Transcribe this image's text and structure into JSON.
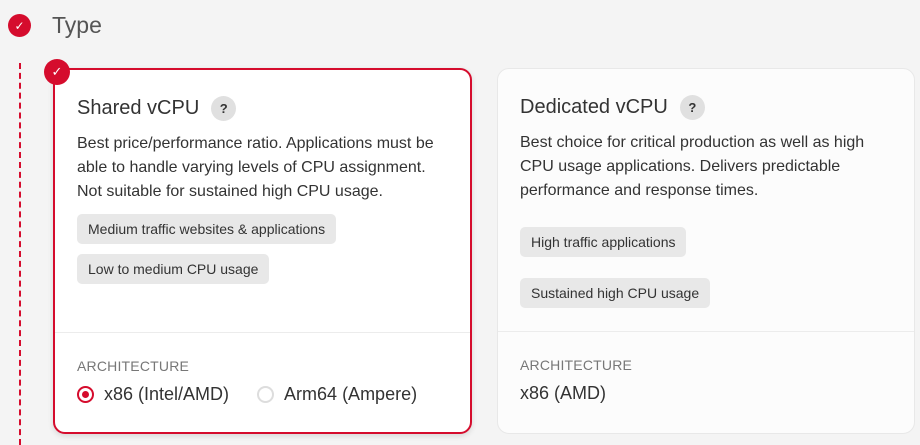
{
  "step": {
    "title": "Type",
    "status": "complete",
    "icon": "check-icon"
  },
  "accent_color": "#d50c2d",
  "cards": [
    {
      "title": "Shared vCPU",
      "help": "?",
      "selected": true,
      "description": "Best price/performance ratio. Applications must be able to handle varying levels of CPU assignment. Not suitable for sustained high CPU usage.",
      "tags": [
        "Medium traffic websites & applications",
        "Low to medium CPU usage"
      ],
      "architecture_label": "ARCHITECTURE",
      "architecture_options": [
        {
          "label": "x86 (Intel/AMD)",
          "selected": true
        },
        {
          "label": "Arm64 (Ampere)",
          "selected": false
        }
      ]
    },
    {
      "title": "Dedicated vCPU",
      "help": "?",
      "selected": false,
      "description": "Best choice for critical production as well as high CPU usage applications. Delivers predictable performance and response times.",
      "tags": [
        "High traffic applications",
        "Sustained high CPU usage"
      ],
      "architecture_label": "ARCHITECTURE",
      "architecture_value": "x86 (AMD)"
    }
  ]
}
